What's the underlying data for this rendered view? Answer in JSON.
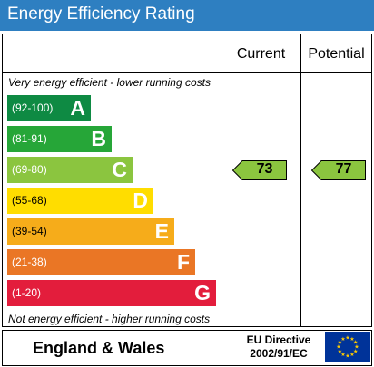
{
  "header": {
    "title": "Energy Efficiency Rating"
  },
  "columns": {
    "current": "Current",
    "potential": "Potential"
  },
  "notes": {
    "top": "Very energy efficient - lower running costs",
    "bottom": "Not energy efficient - higher running costs"
  },
  "chart_data": {
    "type": "bar",
    "title": "Energy Efficiency Rating",
    "categories": [
      "A",
      "B",
      "C",
      "D",
      "E",
      "F",
      "G"
    ],
    "bands": [
      {
        "letter": "A",
        "range": "(92-100)",
        "color": "#0e8a43"
      },
      {
        "letter": "B",
        "range": "(81-91)",
        "color": "#26a638"
      },
      {
        "letter": "C",
        "range": "(69-80)",
        "color": "#8bc53f"
      },
      {
        "letter": "D",
        "range": "(55-68)",
        "color": "#ffdd00"
      },
      {
        "letter": "E",
        "range": "(39-54)",
        "color": "#f6ac1a"
      },
      {
        "letter": "F",
        "range": "(21-38)",
        "color": "#ea7625"
      },
      {
        "letter": "G",
        "range": "(1-20)",
        "color": "#e31d3c"
      }
    ],
    "series": [
      {
        "name": "Current",
        "value": 73,
        "band": "C"
      },
      {
        "name": "Potential",
        "value": 77,
        "band": "C"
      }
    ],
    "arrow_color": "#8bc53f"
  },
  "footer": {
    "region": "England & Wales",
    "directive_line1": "EU Directive",
    "directive_line2": "2002/91/EC",
    "flag_color": "#003399",
    "star_color": "#ffcc00"
  }
}
